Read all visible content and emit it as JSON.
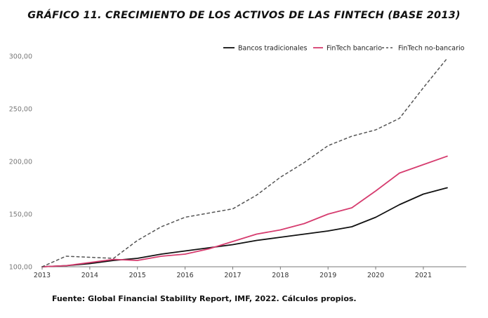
{
  "chart_data": {
    "type": "line",
    "title": "GRÁFICO 11. CRECIMIENTO DE LOS ACTIVOS DE LAS FINTECH (BASE 2013)",
    "source": "Fuente: Global Financial Stability Report, IMF, 2022. Cálculos propios.",
    "xlabel": "",
    "ylabel": "",
    "ylim": [
      100,
      300
    ],
    "xlim": [
      2013,
      2021.9
    ],
    "x_ticks": [
      2013,
      2014,
      2015,
      2016,
      2017,
      2018,
      2019,
      2020,
      2021
    ],
    "x_tick_labels": [
      "2013",
      "2014",
      "2015",
      "2016",
      "2017",
      "2018",
      "2019",
      "2020",
      "2021"
    ],
    "y_ticks": [
      100,
      150,
      200,
      250,
      300
    ],
    "y_tick_labels": [
      "100,00",
      "150,00",
      "200,00",
      "250,00",
      "300,00"
    ],
    "grid": false,
    "legend_position": "top-right",
    "series": [
      {
        "name": "Bancos tradicionales",
        "color": "#111111",
        "dash": "solid",
        "x": [
          2013,
          2013.5,
          2014,
          2014.5,
          2015,
          2015.5,
          2016,
          2016.5,
          2017,
          2017.5,
          2018,
          2018.5,
          2019,
          2019.5,
          2020,
          2020.5,
          2021,
          2021.5
        ],
        "y": [
          100,
          101,
          103,
          106,
          108,
          112,
          115,
          118,
          121,
          125,
          128,
          131,
          134,
          138,
          147,
          159,
          169,
          175
        ]
      },
      {
        "name": "FinTech bancario",
        "color": "#d63c6f",
        "dash": "solid",
        "x": [
          2013,
          2013.5,
          2014,
          2014.5,
          2015,
          2015.5,
          2016,
          2016.5,
          2017,
          2017.5,
          2018,
          2018.5,
          2019,
          2019.5,
          2020,
          2020.5,
          2021,
          2021.5
        ],
        "y": [
          100,
          101,
          104,
          107,
          106,
          110,
          112,
          117,
          124,
          131,
          135,
          141,
          150,
          156,
          172,
          189,
          197,
          205
        ]
      },
      {
        "name": "FinTech no-bancario",
        "color": "#555555",
        "dash": "dashed",
        "x": [
          2013,
          2013.5,
          2014,
          2014.5,
          2015,
          2015.5,
          2016,
          2016.5,
          2017,
          2017.5,
          2018,
          2018.5,
          2019,
          2019.5,
          2020,
          2020.5,
          2021,
          2021.5
        ],
        "y": [
          100,
          110,
          109,
          108,
          125,
          138,
          147,
          151,
          155,
          168,
          185,
          199,
          215,
          224,
          230,
          241,
          270,
          298
        ]
      }
    ]
  }
}
